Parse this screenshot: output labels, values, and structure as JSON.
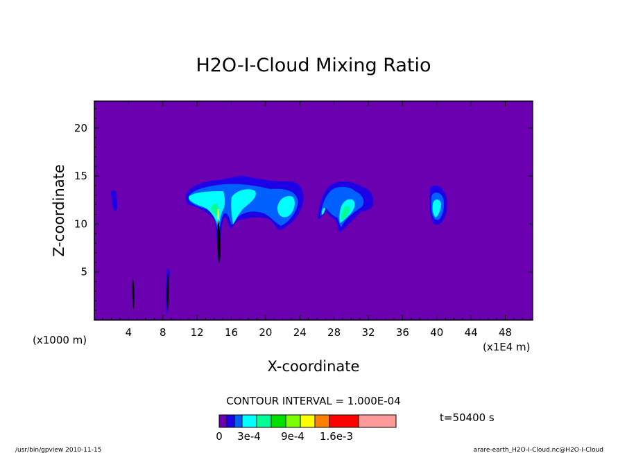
{
  "chart_data": {
    "type": "contour",
    "title": "H2O-I-Cloud Mixing Ratio",
    "xlabel": "X-coordinate",
    "ylabel": "Z-coordinate",
    "x_unit_left": "(x1000 m)",
    "x_unit_right": "(x1E4 m)",
    "xlim": [
      0,
      51.2
    ],
    "ylim": [
      0,
      22.8
    ],
    "x_ticks": [
      4,
      8,
      12,
      16,
      20,
      24,
      28,
      32,
      36,
      40,
      44,
      48
    ],
    "y_ticks": [
      5,
      10,
      15,
      20
    ],
    "contour_interval": "CONTOUR INTERVAL = 1.000E-04",
    "time_label": "t=50400 s",
    "background_level": 0,
    "levels": [
      0,
      0.0001,
      0.0002,
      0.0003,
      0.0004,
      0.0005,
      0.0006,
      0.0007,
      0.0008,
      0.0009,
      0.001,
      0.0011,
      0.0012
    ],
    "colorbar": {
      "colors": [
        "#6a00b0",
        "#1e00e6",
        "#0060ff",
        "#00ffff",
        "#00ff96",
        "#00e000",
        "#7cff00",
        "#ffff00",
        "#ff7f00",
        "#ff0000",
        "#ff9a9a"
      ],
      "labels": [
        "0",
        "3e-4",
        "9e-4",
        "1.6e-3"
      ]
    },
    "features": [
      {
        "x": 2.2,
        "z_top": 13.3,
        "z_bottom": 11.3,
        "max_level": 1
      },
      {
        "x": 14.5,
        "z_top": 13.6,
        "z_bottom": 6.2,
        "max_level": 5
      },
      {
        "x": 18.0,
        "z_top": 15.2,
        "z_bottom": 9.8,
        "max_level": 4
      },
      {
        "x": 22.5,
        "z_top": 14.5,
        "z_bottom": 9.5,
        "max_level": 4
      },
      {
        "x": 29.0,
        "z_top": 14.4,
        "z_bottom": 9.0,
        "max_level": 5
      },
      {
        "x": 39.9,
        "z_top": 14.0,
        "z_bottom": 10.0,
        "max_level": 4
      },
      {
        "x": 4.6,
        "z_top": 4.5,
        "z_bottom": 1.0,
        "max_level": 1
      },
      {
        "x": 8.8,
        "z_top": 5.4,
        "z_bottom": 0.5,
        "max_level": 1
      }
    ]
  },
  "footer": {
    "left": "/usr/bin/gpview   2010-11-15",
    "right": "arare-earth_H2O-I-Cloud.nc@H2O-I-Cloud"
  }
}
